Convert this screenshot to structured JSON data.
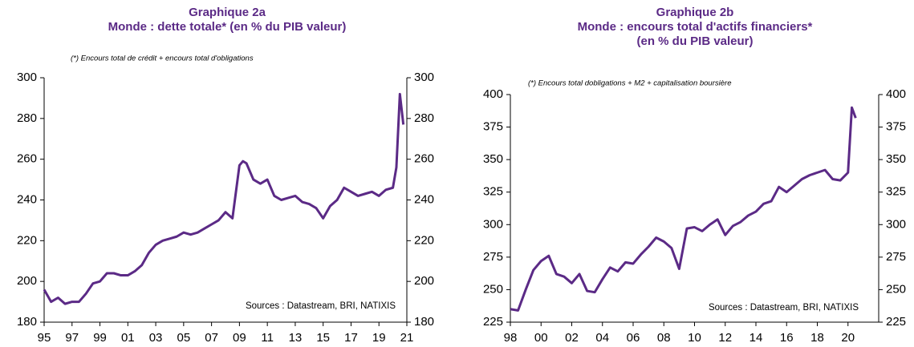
{
  "chart_data": [
    {
      "type": "line",
      "title": [
        "Graphique 2a",
        "Monde : dette totale* (en % du PIB valeur)"
      ],
      "note": "(*) Encours total de crédit + encours total d'obligations",
      "source": "Sources  : Datastream,  BRI,  NATIXIS",
      "x": [
        1995,
        1995.5,
        1996,
        1996.5,
        1997,
        1997.5,
        1998,
        1998.5,
        1999,
        1999.5,
        2000,
        2000.5,
        2001,
        2001.5,
        2002,
        2002.5,
        2003,
        2003.5,
        2004,
        2004.5,
        2005,
        2005.5,
        2006,
        2006.5,
        2007,
        2007.5,
        2008,
        2008.5,
        2009,
        2009.25,
        2009.5,
        2010,
        2010.5,
        2011,
        2011.5,
        2012,
        2012.5,
        2013,
        2013.5,
        2014,
        2014.5,
        2015,
        2015.5,
        2016,
        2016.5,
        2017,
        2017.5,
        2018,
        2018.5,
        2019,
        2019.5,
        2020,
        2020.25,
        2020.5,
        2020.75
      ],
      "series": [
        {
          "color": "#5b2a86",
          "values": [
            196,
            190,
            192,
            189,
            190,
            190,
            194,
            199,
            200,
            204,
            204,
            203,
            203,
            205,
            208,
            214,
            218,
            220,
            221,
            222,
            224,
            223,
            224,
            226,
            228,
            230,
            234,
            231,
            257,
            259,
            258,
            250,
            248,
            250,
            242,
            240,
            241,
            242,
            239,
            238,
            236,
            231,
            237,
            240,
            246,
            244,
            242,
            243,
            244,
            242,
            245,
            246,
            256,
            292,
            277
          ]
        }
      ],
      "xlim": [
        1995,
        2021
      ],
      "xticks": [
        {
          "value": 1995,
          "label": "95"
        },
        {
          "value": 1997,
          "label": "97"
        },
        {
          "value": 1999,
          "label": "99"
        },
        {
          "value": 2001,
          "label": "01"
        },
        {
          "value": 2003,
          "label": "03"
        },
        {
          "value": 2005,
          "label": "05"
        },
        {
          "value": 2007,
          "label": "07"
        },
        {
          "value": 2009,
          "label": "09"
        },
        {
          "value": 2011,
          "label": "11"
        },
        {
          "value": 2013,
          "label": "13"
        },
        {
          "value": 2015,
          "label": "15"
        },
        {
          "value": 2017,
          "label": "17"
        },
        {
          "value": 2019,
          "label": "19"
        },
        {
          "value": 2021,
          "label": "21"
        }
      ],
      "ylim": [
        180,
        300
      ],
      "yticks": [
        180,
        200,
        220,
        240,
        260,
        280,
        300
      ],
      "y2lim": [
        180,
        300
      ],
      "y2ticks": [
        180,
        200,
        220,
        240,
        260,
        280,
        300
      ]
    },
    {
      "type": "line",
      "title": [
        "Graphique 2b",
        "Monde : encours total d'actifs financiers*",
        "(en % du PIB valeur)"
      ],
      "note": "(*) Encours total dobligations + M2 + capitalisation boursière",
      "source": "Sources  : Datastream,  BRI,  NATIXIS",
      "x": [
        1998,
        1998.5,
        1999,
        1999.5,
        2000,
        2000.5,
        2001,
        2001.5,
        2002,
        2002.5,
        2003,
        2003.5,
        2004,
        2004.5,
        2005,
        2005.5,
        2006,
        2006.5,
        2007,
        2007.5,
        2008,
        2008.5,
        2009,
        2009.5,
        2010,
        2010.5,
        2011,
        2011.5,
        2012,
        2012.5,
        2013,
        2013.5,
        2014,
        2014.5,
        2015,
        2015.5,
        2016,
        2016.5,
        2017,
        2017.5,
        2018,
        2018.5,
        2019,
        2019.5,
        2020,
        2020.25,
        2020.5
      ],
      "series": [
        {
          "color": "#5b2a86",
          "values": [
            235,
            234,
            250,
            265,
            272,
            276,
            262,
            260,
            255,
            262,
            249,
            248,
            258,
            267,
            264,
            271,
            270,
            277,
            283,
            290,
            287,
            282,
            266,
            297,
            298,
            295,
            300,
            304,
            292,
            299,
            302,
            307,
            310,
            316,
            318,
            329,
            325,
            330,
            335,
            338,
            340,
            342,
            335,
            334,
            340,
            390,
            382
          ]
        }
      ],
      "xlim": [
        1998,
        2022
      ],
      "xticks": [
        {
          "value": 1998,
          "label": "98"
        },
        {
          "value": 2000,
          "label": "00"
        },
        {
          "value": 2002,
          "label": "02"
        },
        {
          "value": 2004,
          "label": "04"
        },
        {
          "value": 2006,
          "label": "06"
        },
        {
          "value": 2008,
          "label": "08"
        },
        {
          "value": 2010,
          "label": "10"
        },
        {
          "value": 2012,
          "label": "12"
        },
        {
          "value": 2014,
          "label": "14"
        },
        {
          "value": 2016,
          "label": "16"
        },
        {
          "value": 2018,
          "label": "18"
        },
        {
          "value": 2020,
          "label": "20"
        }
      ],
      "ylim": [
        225,
        400
      ],
      "yticks": [
        225,
        250,
        275,
        300,
        325,
        350,
        375,
        400
      ],
      "y2lim": [
        225,
        400
      ],
      "y2ticks": [
        225,
        250,
        275,
        300,
        325,
        350,
        375,
        400
      ]
    }
  ]
}
